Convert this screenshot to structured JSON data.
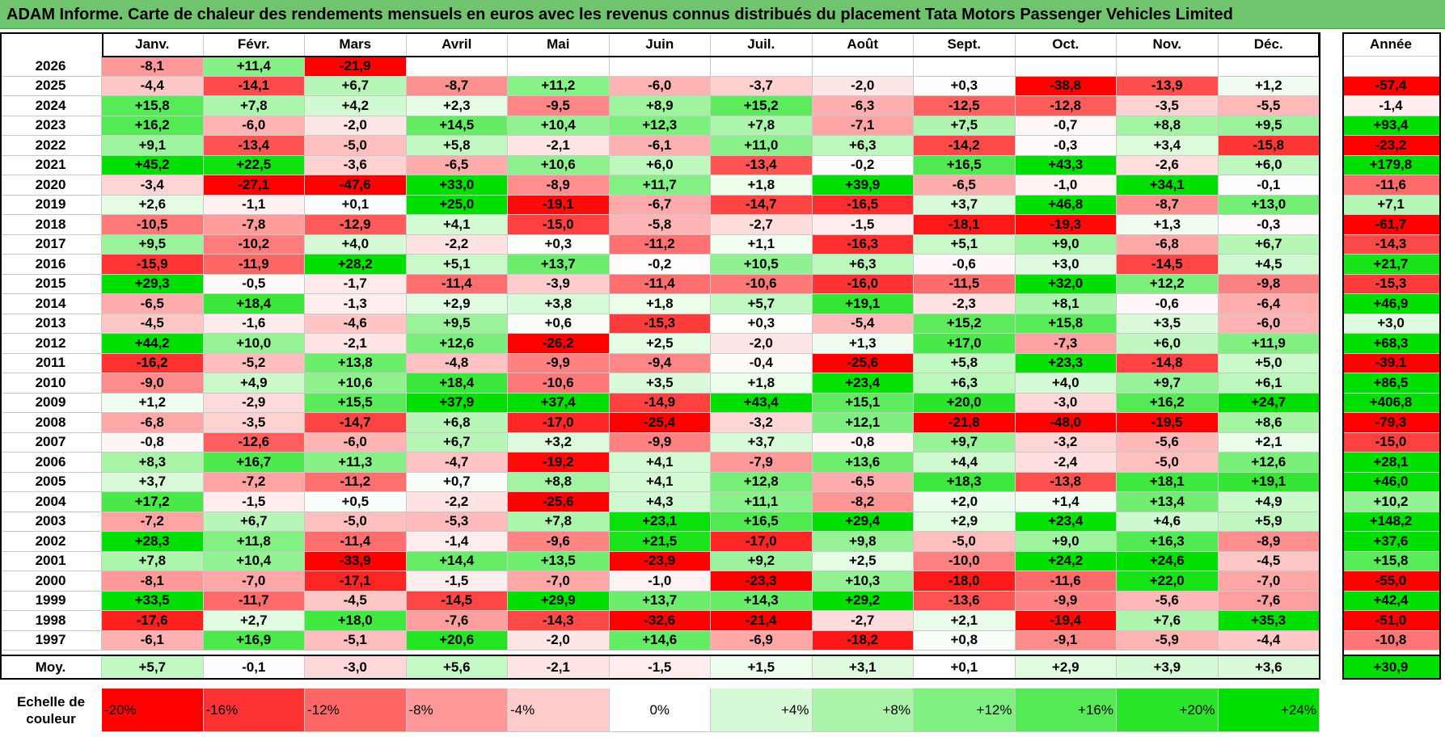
{
  "title": "ADAM Informe. Carte de chaleur des rendements mensuels en euros avec les revenus connus distribués du placement Tata Motors Passenger Vehicles Limited",
  "chart_data": {
    "type": "heatmap",
    "columns": [
      "Janv.",
      "Févr.",
      "Mars",
      "Avril",
      "Mai",
      "Juin",
      "Juil.",
      "Août",
      "Sept.",
      "Oct.",
      "Nov.",
      "Déc."
    ],
    "year_column": "Année",
    "rows": [
      {
        "year": "2026",
        "values": [
          "-8,1",
          "+11,4",
          "-21,9",
          "",
          "",
          "",
          "",
          "",
          "",
          "",
          "",
          ""
        ],
        "annual": ""
      },
      {
        "year": "2025",
        "values": [
          "-4,4",
          "-14,1",
          "+6,7",
          "-8,7",
          "+11,2",
          "-6,0",
          "-3,7",
          "-2,0",
          "+0,3",
          "-38,8",
          "-13,9",
          "+1,2"
        ],
        "annual": "-57,4"
      },
      {
        "year": "2024",
        "values": [
          "+15,8",
          "+7,8",
          "+4,2",
          "+2,3",
          "-9,5",
          "+8,9",
          "+15,2",
          "-6,3",
          "-12,5",
          "-12,8",
          "-3,5",
          "-5,5"
        ],
        "annual": "-1,4"
      },
      {
        "year": "2023",
        "values": [
          "+16,2",
          "-6,0",
          "-2,0",
          "+14,5",
          "+10,4",
          "+12,3",
          "+7,8",
          "-7,1",
          "+7,5",
          "-0,7",
          "+8,8",
          "+9,5"
        ],
        "annual": "+93,4"
      },
      {
        "year": "2022",
        "values": [
          "+9,1",
          "-13,4",
          "-5,0",
          "+5,8",
          "-2,1",
          "-6,1",
          "+11,0",
          "+6,3",
          "-14,2",
          "-0,3",
          "+3,4",
          "-15,8"
        ],
        "annual": "-23,2"
      },
      {
        "year": "2021",
        "values": [
          "+45,2",
          "+22,5",
          "-3,6",
          "-6,5",
          "+10,6",
          "+6,0",
          "-13,4",
          "-0,2",
          "+16,5",
          "+43,3",
          "-2,6",
          "+6,0"
        ],
        "annual": "+179,8"
      },
      {
        "year": "2020",
        "values": [
          "-3,4",
          "-27,1",
          "-47,6",
          "+33,0",
          "-8,9",
          "+11,7",
          "+1,8",
          "+39,9",
          "-6,5",
          "-1,0",
          "+34,1",
          "-0,1"
        ],
        "annual": "-11,6"
      },
      {
        "year": "2019",
        "values": [
          "+2,6",
          "-1,1",
          "+0,1",
          "+25,0",
          "-19,1",
          "-6,7",
          "-14,7",
          "-16,5",
          "+3,7",
          "+46,8",
          "-8,7",
          "+13,0"
        ],
        "annual": "+7,1"
      },
      {
        "year": "2018",
        "values": [
          "-10,5",
          "-7,8",
          "-12,9",
          "+4,1",
          "-15,0",
          "-5,8",
          "-2,7",
          "-1,5",
          "-18,1",
          "-19,3",
          "+1,3",
          "-0,3"
        ],
        "annual": "-61,7"
      },
      {
        "year": "2017",
        "values": [
          "+9,5",
          "-10,2",
          "+4,0",
          "-2,2",
          "+0,3",
          "-11,2",
          "+1,1",
          "-16,3",
          "+5,1",
          "+9,0",
          "-6,8",
          "+6,7"
        ],
        "annual": "-14,3"
      },
      {
        "year": "2016",
        "values": [
          "-15,9",
          "-11,9",
          "+28,2",
          "+5,1",
          "+13,7",
          "-0,2",
          "+10,5",
          "+6,3",
          "-0,6",
          "+3,0",
          "-14,5",
          "+4,5"
        ],
        "annual": "+21,7"
      },
      {
        "year": "2015",
        "values": [
          "+29,3",
          "-0,5",
          "-1,7",
          "-11,4",
          "-3,9",
          "-11,4",
          "-10,6",
          "-16,0",
          "-11,5",
          "+32,0",
          "+12,2",
          "-9,8"
        ],
        "annual": "-15,3"
      },
      {
        "year": "2014",
        "values": [
          "-6,5",
          "+18,4",
          "-1,3",
          "+2,9",
          "+3,8",
          "+1,8",
          "+5,7",
          "+19,1",
          "-2,3",
          "+8,1",
          "-0,6",
          "-6,4"
        ],
        "annual": "+46,9"
      },
      {
        "year": "2013",
        "values": [
          "-4,5",
          "-1,6",
          "-4,6",
          "+9,5",
          "+0,6",
          "-15,3",
          "+0,3",
          "-5,4",
          "+15,2",
          "+15,8",
          "+3,5",
          "-6,0"
        ],
        "annual": "+3,0"
      },
      {
        "year": "2012",
        "values": [
          "+44,2",
          "+10,0",
          "-2,1",
          "+12,6",
          "-26,2",
          "+2,5",
          "-2,0",
          "+1,3",
          "+17,0",
          "-7,3",
          "+6,0",
          "+11,9"
        ],
        "annual": "+68,3"
      },
      {
        "year": "2011",
        "values": [
          "-16,2",
          "-5,2",
          "+13,8",
          "-4,8",
          "-9,9",
          "-9,4",
          "-0,4",
          "-25,6",
          "+5,8",
          "+23,3",
          "-14,8",
          "+5,0"
        ],
        "annual": "-39,1"
      },
      {
        "year": "2010",
        "values": [
          "-9,0",
          "+4,9",
          "+10,6",
          "+18,4",
          "-10,6",
          "+3,5",
          "+1,8",
          "+23,4",
          "+6,3",
          "+4,0",
          "+9,7",
          "+6,1"
        ],
        "annual": "+86,5"
      },
      {
        "year": "2009",
        "values": [
          "+1,2",
          "-2,9",
          "+15,5",
          "+37,9",
          "+37,4",
          "-14,9",
          "+43,4",
          "+15,1",
          "+20,0",
          "-3,0",
          "+16,2",
          "+24,7"
        ],
        "annual": "+406,8"
      },
      {
        "year": "2008",
        "values": [
          "-6,8",
          "-3,5",
          "-14,7",
          "+6,8",
          "-17,0",
          "-25,4",
          "-3,2",
          "+12,1",
          "-21,8",
          "-48,0",
          "-19,5",
          "+8,6"
        ],
        "annual": "-79,3"
      },
      {
        "year": "2007",
        "values": [
          "-0,8",
          "-12,6",
          "-6,0",
          "+6,7",
          "+3,2",
          "-9,9",
          "+3,7",
          "-0,8",
          "+9,7",
          "-3,2",
          "-5,6",
          "+2,1"
        ],
        "annual": "-15,0"
      },
      {
        "year": "2006",
        "values": [
          "+8,3",
          "+16,7",
          "+11,3",
          "-4,7",
          "-19,2",
          "+4,1",
          "-7,9",
          "+13,6",
          "+4,4",
          "-2,4",
          "-5,0",
          "+12,6"
        ],
        "annual": "+28,1"
      },
      {
        "year": "2005",
        "values": [
          "+3,7",
          "-7,2",
          "-11,2",
          "+0,7",
          "+8,8",
          "+4,1",
          "+12,8",
          "-6,5",
          "+18,3",
          "-13,8",
          "+18,1",
          "+19,1"
        ],
        "annual": "+46,0"
      },
      {
        "year": "2004",
        "values": [
          "+17,2",
          "-1,5",
          "+0,5",
          "-2,2",
          "-25,6",
          "+4,3",
          "+11,1",
          "-8,2",
          "+2,0",
          "+1,4",
          "+13,4",
          "+4,9"
        ],
        "annual": "+10,2"
      },
      {
        "year": "2003",
        "values": [
          "-7,2",
          "+6,7",
          "-5,0",
          "-5,3",
          "+7,8",
          "+23,1",
          "+16,5",
          "+29,4",
          "+2,9",
          "+23,4",
          "+4,6",
          "+5,9"
        ],
        "annual": "+148,2"
      },
      {
        "year": "2002",
        "values": [
          "+28,3",
          "+11,8",
          "-11,4",
          "-1,4",
          "-9,6",
          "+21,5",
          "-17,0",
          "+9,8",
          "-5,0",
          "+9,0",
          "+16,3",
          "-8,9"
        ],
        "annual": "+37,6"
      },
      {
        "year": "2001",
        "values": [
          "+7,8",
          "+10,4",
          "-33,9",
          "+14,4",
          "+13,5",
          "-23,9",
          "+9,2",
          "+2,5",
          "-10,0",
          "+24,2",
          "+24,6",
          "-4,5"
        ],
        "annual": "+15,8"
      },
      {
        "year": "2000",
        "values": [
          "-8,1",
          "-7,0",
          "-17,1",
          "-1,5",
          "-7,0",
          "-1,0",
          "-23,3",
          "+10,3",
          "-18,0",
          "-11,6",
          "+22,0",
          "-7,0"
        ],
        "annual": "-55,0"
      },
      {
        "year": "1999",
        "values": [
          "+33,5",
          "-11,7",
          "-4,5",
          "-14,5",
          "+29,9",
          "+13,7",
          "+14,3",
          "+29,2",
          "-13,6",
          "-9,9",
          "-5,6",
          "-7,6"
        ],
        "annual": "+42,4"
      },
      {
        "year": "1998",
        "values": [
          "-17,6",
          "+2,7",
          "+18,0",
          "-7,6",
          "-14,3",
          "-32,6",
          "-21,4",
          "-2,7",
          "+2,1",
          "-19,4",
          "+7,6",
          "+35,3"
        ],
        "annual": "-51,0"
      },
      {
        "year": "1997",
        "values": [
          "-6,1",
          "+16,9",
          "-5,1",
          "+20,6",
          "-2,0",
          "+14,6",
          "-6,9",
          "-18,2",
          "+0,8",
          "-9,1",
          "-5,9",
          "-4,4"
        ],
        "annual": "-10,8"
      }
    ],
    "average": {
      "label": "Moy.",
      "values": [
        "+5,7",
        "-0,1",
        "-3,0",
        "+5,6",
        "-2,1",
        "-1,5",
        "+1,5",
        "+3,1",
        "+0,1",
        "+2,9",
        "+3,9",
        "+3,6"
      ],
      "annual": "+30,9"
    },
    "scale": {
      "label_line1": "Echelle de",
      "label_line2": "couleur",
      "steps": [
        {
          "label": "-20%",
          "value": -20
        },
        {
          "label": "-16%",
          "value": -16
        },
        {
          "label": "-12%",
          "value": -12
        },
        {
          "label": "-8%",
          "value": -8
        },
        {
          "label": "-4%",
          "value": -4
        },
        {
          "label": "0%",
          "value": 0
        },
        {
          "label": "+4%",
          "value": 4
        },
        {
          "label": "+8%",
          "value": 8
        },
        {
          "label": "+12%",
          "value": 12
        },
        {
          "label": "+16%",
          "value": 16
        },
        {
          "label": "+20%",
          "value": 20
        },
        {
          "label": "+24%",
          "value": 24
        }
      ]
    },
    "colors": {
      "negative_max": "#ff0000",
      "neutral": "#ffffff",
      "positive_max": "#00e000",
      "title_bar": "#70c46d"
    }
  }
}
